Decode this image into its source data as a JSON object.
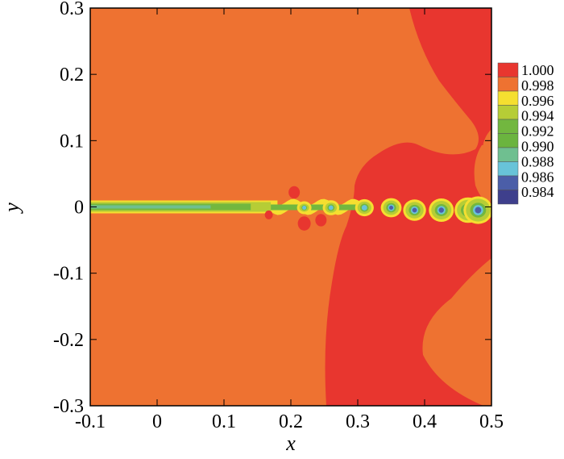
{
  "chart_data": {
    "type": "heatmap",
    "subtype": "filled-contour",
    "title": "",
    "xlabel": "x",
    "ylabel": "y",
    "xlim": [
      -0.1,
      0.5
    ],
    "ylim": [
      -0.3,
      0.3
    ],
    "xticks": [
      "-0.1",
      "0",
      "0.1",
      "0.2",
      "0.3",
      "0.4",
      "0.5"
    ],
    "yticks": [
      "0.3",
      "0.2",
      "0.1",
      "0",
      "-0.1",
      "-0.2",
      "-0.3"
    ],
    "grid": false,
    "legend_placement": "right",
    "legend": {
      "levels": [
        "1.000",
        "0.998",
        "0.996",
        "0.994",
        "0.992",
        "0.990",
        "0.988",
        "0.986",
        "0.984"
      ],
      "colors": [
        "#e8362f",
        "#ee7231",
        "#f5df30",
        "#b6cd36",
        "#72b73f",
        "#6bb43f",
        "#6fbf90",
        "#68c3d8",
        "#4b5ea8",
        "#3e3f8c"
      ]
    },
    "background_level_color": "#ee7231",
    "vortex_cores_x": [
      0.22,
      0.26,
      0.31,
      0.35,
      0.385,
      0.425,
      0.465,
      0.48
    ]
  }
}
